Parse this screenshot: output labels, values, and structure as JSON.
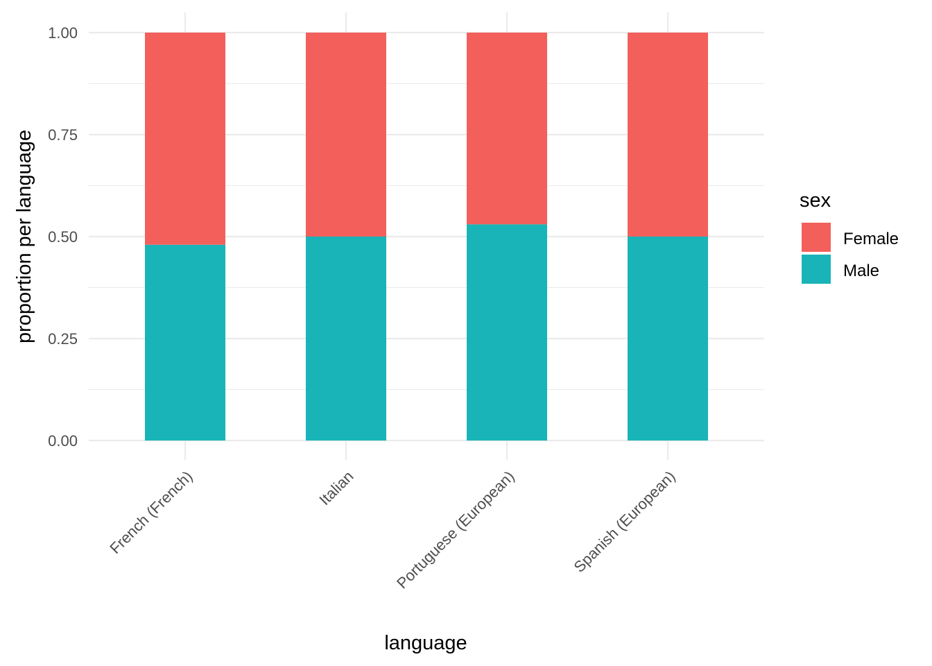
{
  "chart_data": {
    "type": "bar",
    "stacked": true,
    "categories": [
      "French (French)",
      "Italian",
      "Portuguese (European)",
      "Spanish (European)"
    ],
    "series": [
      {
        "name": "Male",
        "values": [
          0.48,
          0.5,
          0.53,
          0.5
        ],
        "color": "#19B4B8"
      },
      {
        "name": "Female",
        "values": [
          0.52,
          0.5,
          0.47,
          0.5
        ],
        "color": "#F3605B"
      }
    ],
    "xlabel": "language",
    "ylabel": "proportion per language",
    "ylim": [
      0,
      1
    ],
    "yticks": [
      0.0,
      0.25,
      0.5,
      0.75,
      1.0
    ],
    "ytick_labels": [
      "0.00",
      "0.25",
      "0.50",
      "0.75",
      "1.00"
    ],
    "grid": true,
    "legend": {
      "title": "sex",
      "placement": "right",
      "entries": [
        {
          "label": "Female",
          "color": "#F3605B"
        },
        {
          "label": "Male",
          "color": "#19B4B8"
        }
      ]
    }
  }
}
